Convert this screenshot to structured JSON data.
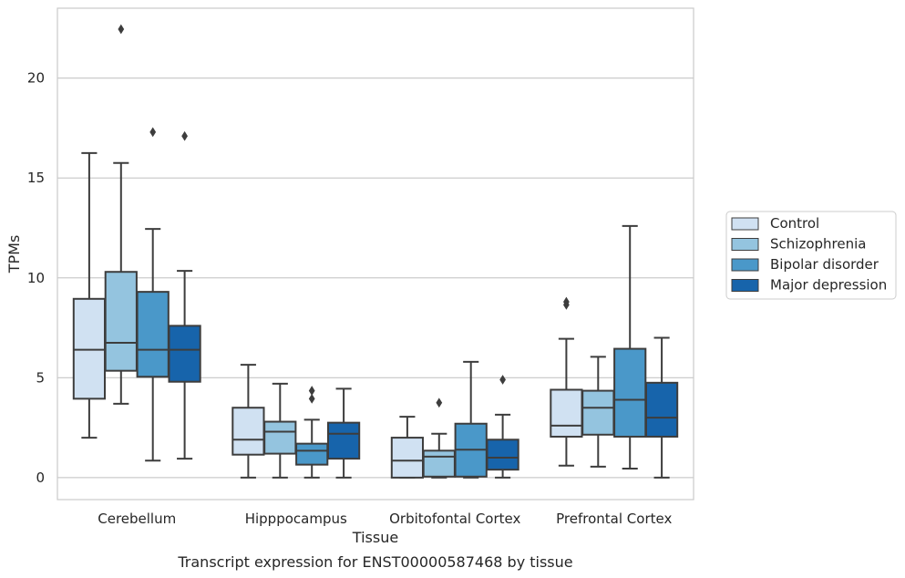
{
  "chart_data": {
    "type": "boxplot",
    "title": "Transcript expression for ENST00000587468 by tissue",
    "xlabel": "Tissue",
    "ylabel": "TPMs",
    "ylim": [
      -1.1,
      23.5
    ],
    "yticks": [
      0,
      5,
      10,
      15,
      20
    ],
    "grid": "horizontal",
    "legend_position": "right",
    "categories": [
      "Cerebellum",
      "Hipppocampus",
      "Orbitofontal Cortex",
      "Prefrontal Cortex"
    ],
    "series": [
      {
        "name": "Control",
        "color": "#d0e1f2",
        "boxes": [
          {
            "whislo": 2.0,
            "q1": 3.95,
            "med": 6.4,
            "q3": 8.95,
            "whishi": 16.25,
            "fliers": []
          },
          {
            "whislo": 0.0,
            "q1": 1.15,
            "med": 1.9,
            "q3": 3.5,
            "whishi": 5.65,
            "fliers": []
          },
          {
            "whislo": 0.0,
            "q1": 0.0,
            "med": 0.85,
            "q3": 2.0,
            "whishi": 3.05,
            "fliers": []
          },
          {
            "whislo": 0.6,
            "q1": 2.05,
            "med": 2.6,
            "q3": 4.4,
            "whishi": 6.95,
            "fliers": [
              8.65,
              8.8
            ]
          }
        ]
      },
      {
        "name": "Schizophrenia",
        "color": "#94c4df",
        "boxes": [
          {
            "whislo": 3.7,
            "q1": 5.35,
            "med": 6.75,
            "q3": 10.3,
            "whishi": 15.75,
            "fliers": [
              22.45
            ]
          },
          {
            "whislo": 0.0,
            "q1": 1.2,
            "med": 2.3,
            "q3": 2.8,
            "whishi": 4.7,
            "fliers": []
          },
          {
            "whislo": 0.0,
            "q1": 0.05,
            "med": 1.05,
            "q3": 1.35,
            "whishi": 2.2,
            "fliers": [
              3.75
            ]
          },
          {
            "whislo": 0.55,
            "q1": 2.15,
            "med": 3.5,
            "q3": 4.35,
            "whishi": 6.05,
            "fliers": []
          }
        ]
      },
      {
        "name": "Bipolar disorder",
        "color": "#4a98c9",
        "boxes": [
          {
            "whislo": 0.85,
            "q1": 5.05,
            "med": 6.4,
            "q3": 9.3,
            "whishi": 12.45,
            "fliers": [
              17.3
            ]
          },
          {
            "whislo": 0.0,
            "q1": 0.65,
            "med": 1.35,
            "q3": 1.7,
            "whishi": 2.9,
            "fliers": [
              3.95,
              4.35
            ]
          },
          {
            "whislo": 0.0,
            "q1": 0.05,
            "med": 1.4,
            "q3": 2.7,
            "whishi": 5.8,
            "fliers": []
          },
          {
            "whislo": 0.45,
            "q1": 2.05,
            "med": 3.9,
            "q3": 6.45,
            "whishi": 12.6,
            "fliers": []
          }
        ]
      },
      {
        "name": "Major depression",
        "color": "#1764ab",
        "boxes": [
          {
            "whislo": 0.95,
            "q1": 4.8,
            "med": 6.4,
            "q3": 7.6,
            "whishi": 10.35,
            "fliers": [
              17.1
            ]
          },
          {
            "whislo": 0.0,
            "q1": 0.95,
            "med": 2.2,
            "q3": 2.75,
            "whishi": 4.45,
            "fliers": []
          },
          {
            "whislo": 0.0,
            "q1": 0.4,
            "med": 1.0,
            "q3": 1.9,
            "whishi": 3.15,
            "fliers": [
              4.9
            ]
          },
          {
            "whislo": 0.0,
            "q1": 2.05,
            "med": 3.0,
            "q3": 4.75,
            "whishi": 7.0,
            "fliers": []
          }
        ]
      }
    ]
  }
}
